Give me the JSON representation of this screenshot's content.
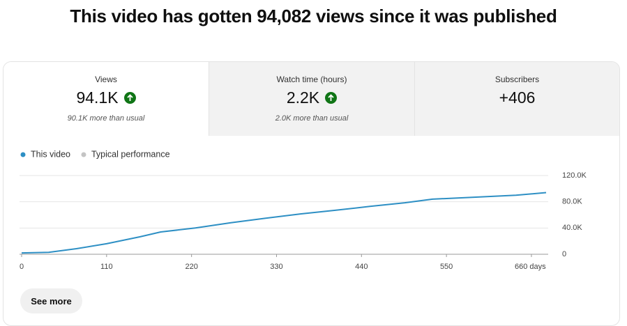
{
  "header": {
    "title": "This video has gotten 94,082 views since it was published"
  },
  "cards": [
    {
      "label": "Views",
      "value": "94.1K",
      "note": "90.1K more than usual",
      "up": true
    },
    {
      "label": "Watch time (hours)",
      "value": "2.2K",
      "note": "2.0K more than usual",
      "up": true
    },
    {
      "label": "Subscribers",
      "value": "+406"
    }
  ],
  "chart_data": {
    "type": "line",
    "x": [
      0,
      35,
      71,
      110,
      153,
      180,
      225,
      271,
      316,
      361,
      406,
      451,
      496,
      532,
      586,
      640,
      679
    ],
    "series": [
      {
        "name": "This video",
        "color": "#2d8fc4",
        "values": [
          2000,
          3000,
          8500,
          16000,
          26500,
          34000,
          40000,
          48000,
          55000,
          61500,
          67000,
          73000,
          78500,
          84000,
          87000,
          90000,
          94000
        ]
      },
      {
        "name": "Typical performance",
        "color": "#c4c4c4",
        "values": [
          null,
          null,
          null,
          null,
          null,
          null,
          null,
          null,
          null,
          null,
          null,
          null,
          null,
          null,
          null,
          null,
          null
        ]
      }
    ],
    "xlim": [
      0,
      679
    ],
    "xticks": [
      0,
      110,
      220,
      330,
      440,
      550,
      {
        "value": 660,
        "label": "660 days"
      }
    ],
    "ylim": [
      0,
      120000
    ],
    "yticks": [
      0,
      {
        "value": 40000,
        "label": "40.0K"
      },
      {
        "value": 80000,
        "label": "80.0K"
      },
      {
        "value": 120000,
        "label": "120.0K"
      }
    ],
    "grid": true
  },
  "button": {
    "label": "See more"
  }
}
